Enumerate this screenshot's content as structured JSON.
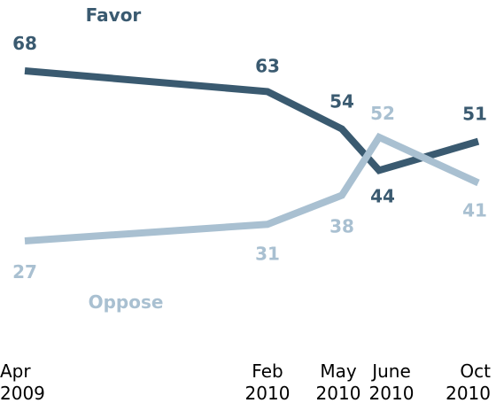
{
  "chart_data": {
    "type": "line",
    "title": "",
    "xlabel": "",
    "ylabel": "",
    "categories": [
      [
        "Apr",
        "2009"
      ],
      [
        "Feb",
        "2010"
      ],
      [
        "May",
        "2010"
      ],
      [
        "June",
        "2010"
      ],
      [
        "Oct",
        "2010"
      ]
    ],
    "series": [
      {
        "name": "Favor",
        "color": "#3a5a70",
        "values": [
          68,
          63,
          54,
          44,
          51
        ]
      },
      {
        "name": "Oppose",
        "color": "#a9c0d1",
        "values": [
          27,
          31,
          38,
          52,
          41
        ]
      }
    ],
    "ylim": [
      0,
      80
    ],
    "grid": false,
    "legend": "inline labels"
  }
}
